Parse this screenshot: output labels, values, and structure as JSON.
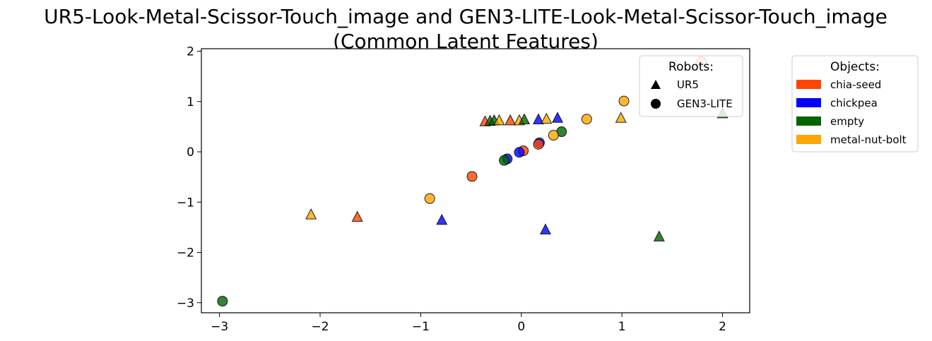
{
  "chart_data": {
    "type": "scatter",
    "title_line1": "UR5-Look-Metal-Scissor-Touch_image and GEN3-LITE-Look-Metal-Scissor-Touch_image",
    "title_line2": "(Common Latent Features)",
    "xlabel": "",
    "ylabel": "",
    "xlim": [
      -3.18,
      2.27
    ],
    "ylim": [
      -3.2,
      2.05
    ],
    "xticks": [
      -3,
      -2,
      -1,
      0,
      1,
      2
    ],
    "yticks": [
      2,
      1,
      0,
      -1,
      -2,
      -3
    ],
    "xtick_labels": [
      "−3",
      "−2",
      "−1",
      "0",
      "1",
      "2"
    ],
    "ytick_labels": [
      "2",
      "1",
      "0",
      "−1",
      "−2",
      "−3"
    ],
    "grid": false,
    "robots_legend": {
      "title": "Robots:",
      "placement": "top-right",
      "items": [
        {
          "label": "UR5",
          "marker": "triangle"
        },
        {
          "label": "GEN3-LITE",
          "marker": "circle"
        }
      ]
    },
    "objects_legend": {
      "title": "Objects:",
      "placement": "outside-right",
      "items": [
        {
          "label": "chia-seed",
          "color": "#FF4500"
        },
        {
          "label": "chickpea",
          "color": "#0000FF"
        },
        {
          "label": "empty",
          "color": "#006400"
        },
        {
          "label": "metal-nut-bolt",
          "color": "#FFA500"
        }
      ]
    },
    "points": [
      {
        "x": -0.36,
        "y": 0.6,
        "robot": "UR5",
        "object": "chia-seed"
      },
      {
        "x": -0.31,
        "y": 0.61,
        "robot": "UR5",
        "object": "empty"
      },
      {
        "x": -0.27,
        "y": 0.62,
        "robot": "UR5",
        "object": "empty"
      },
      {
        "x": -0.22,
        "y": 0.62,
        "robot": "UR5",
        "object": "metal-nut-bolt"
      },
      {
        "x": -0.11,
        "y": 0.62,
        "robot": "UR5",
        "object": "chia-seed"
      },
      {
        "x": -0.02,
        "y": 0.62,
        "robot": "UR5",
        "object": "metal-nut-bolt"
      },
      {
        "x": 0.03,
        "y": 0.64,
        "robot": "UR5",
        "object": "empty"
      },
      {
        "x": 0.17,
        "y": 0.64,
        "robot": "UR5",
        "object": "chickpea"
      },
      {
        "x": 0.25,
        "y": 0.65,
        "robot": "UR5",
        "object": "metal-nut-bolt"
      },
      {
        "x": 0.36,
        "y": 0.67,
        "robot": "UR5",
        "object": "chickpea"
      },
      {
        "x": 0.99,
        "y": 0.67,
        "robot": "UR5",
        "object": "metal-nut-bolt"
      },
      {
        "x": 2.0,
        "y": 0.76,
        "robot": "UR5",
        "object": "empty"
      },
      {
        "x": -2.09,
        "y": -1.25,
        "robot": "UR5",
        "object": "metal-nut-bolt"
      },
      {
        "x": -1.63,
        "y": -1.3,
        "robot": "UR5",
        "object": "chia-seed"
      },
      {
        "x": -0.79,
        "y": -1.36,
        "robot": "UR5",
        "object": "chickpea"
      },
      {
        "x": 0.24,
        "y": -1.55,
        "robot": "UR5",
        "object": "chickpea"
      },
      {
        "x": 1.37,
        "y": -1.69,
        "robot": "UR5",
        "object": "empty"
      },
      {
        "x": 1.79,
        "y": 1.79,
        "robot": "GEN3-LITE",
        "object": "metal-nut-bolt"
      },
      {
        "x": 1.02,
        "y": 1.01,
        "robot": "GEN3-LITE",
        "object": "metal-nut-bolt"
      },
      {
        "x": 0.65,
        "y": 0.65,
        "robot": "GEN3-LITE",
        "object": "metal-nut-bolt"
      },
      {
        "x": 0.4,
        "y": 0.4,
        "robot": "GEN3-LITE",
        "object": "empty"
      },
      {
        "x": 0.32,
        "y": 0.33,
        "robot": "GEN3-LITE",
        "object": "metal-nut-bolt"
      },
      {
        "x": 0.18,
        "y": 0.18,
        "robot": "GEN3-LITE",
        "object": "chickpea"
      },
      {
        "x": 0.17,
        "y": 0.15,
        "robot": "GEN3-LITE",
        "object": "chia-seed"
      },
      {
        "x": 0.02,
        "y": 0.02,
        "robot": "GEN3-LITE",
        "object": "chia-seed"
      },
      {
        "x": -0.02,
        "y": -0.01,
        "robot": "GEN3-LITE",
        "object": "chickpea"
      },
      {
        "x": -0.14,
        "y": -0.14,
        "robot": "GEN3-LITE",
        "object": "chickpea"
      },
      {
        "x": -0.17,
        "y": -0.17,
        "robot": "GEN3-LITE",
        "object": "empty"
      },
      {
        "x": -0.49,
        "y": -0.49,
        "robot": "GEN3-LITE",
        "object": "chia-seed"
      },
      {
        "x": -0.91,
        "y": -0.93,
        "robot": "GEN3-LITE",
        "object": "metal-nut-bolt"
      },
      {
        "x": -2.97,
        "y": -2.97,
        "robot": "GEN3-LITE",
        "object": "empty"
      }
    ]
  }
}
